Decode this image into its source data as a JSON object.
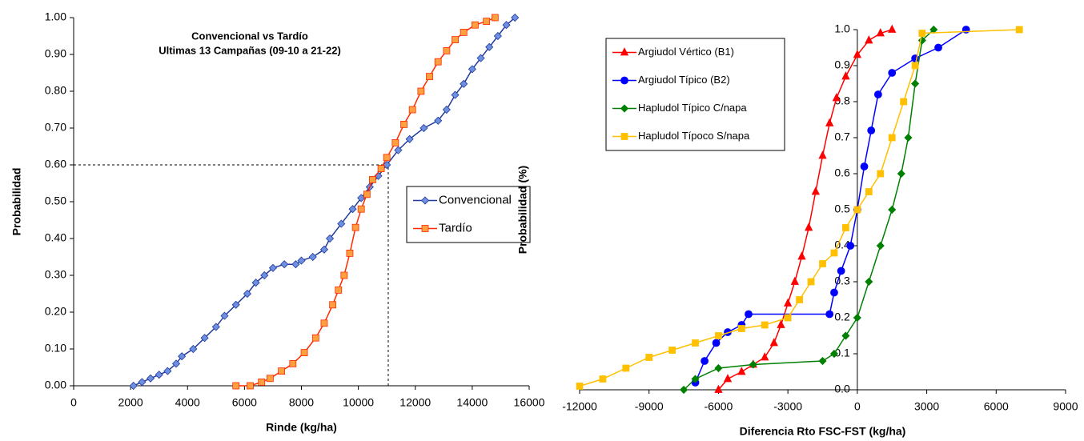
{
  "chart_data": [
    {
      "type": "line",
      "title": "Convencional vs Tardío",
      "subtitle": "Ultimas 13 Campañas (09-10 a 21-22)",
      "x_label": "Rinde (kg/ha)",
      "y_label": "Probabilidad",
      "xlim": [
        0,
        16000
      ],
      "xticks": [
        0,
        2000,
        4000,
        6000,
        8000,
        10000,
        12000,
        14000,
        16000
      ],
      "ylim": [
        0,
        1
      ],
      "yticks": [
        {
          "value": 0,
          "label": "0.00"
        },
        {
          "value": 0.1,
          "label": "0.10"
        },
        {
          "value": 0.2,
          "label": "0.20"
        },
        {
          "value": 0.3,
          "label": "0.30"
        },
        {
          "value": 0.4,
          "label": "0.40"
        },
        {
          "value": 0.5,
          "label": "0.50"
        },
        {
          "value": 0.6,
          "label": "0.60"
        },
        {
          "value": 0.7,
          "label": "0.70"
        },
        {
          "value": 0.8,
          "label": "0.80"
        },
        {
          "value": 0.9,
          "label": "0.90"
        },
        {
          "value": 1,
          "label": "1.00"
        }
      ],
      "legend": "center right",
      "grid": false,
      "guide": {
        "x": 11050,
        "y": 0.6
      },
      "series": [
        {
          "name": "Convencional",
          "color": "#1f3a9c",
          "marker_fill": "#6f8fe0",
          "marker": "diamond",
          "x": [
            2100,
            2400,
            2700,
            3000,
            3300,
            3600,
            3800,
            4200,
            4600,
            5000,
            5300,
            5700,
            6100,
            6400,
            6700,
            7000,
            7400,
            7800,
            8000,
            8400,
            8800,
            9000,
            9400,
            9800,
            10100,
            10400,
            10700,
            11000,
            11400,
            11800,
            12300,
            12800,
            13100,
            13400,
            13700,
            14000,
            14300,
            14600,
            14900,
            15200,
            15500
          ],
          "values": [
            0,
            0.01,
            0.02,
            0.03,
            0.04,
            0.06,
            0.08,
            0.1,
            0.13,
            0.16,
            0.19,
            0.22,
            0.25,
            0.28,
            0.3,
            0.32,
            0.33,
            0.33,
            0.34,
            0.35,
            0.37,
            0.4,
            0.44,
            0.48,
            0.51,
            0.54,
            0.57,
            0.6,
            0.64,
            0.67,
            0.7,
            0.72,
            0.75,
            0.79,
            0.82,
            0.86,
            0.89,
            0.92,
            0.95,
            0.98,
            1
          ]
        },
        {
          "name": "Tardío",
          "color": "#ff2a00",
          "marker_fill": "#ffa040",
          "marker": "square",
          "x": [
            5700,
            6200,
            6600,
            6900,
            7300,
            7700,
            8100,
            8500,
            8800,
            9100,
            9300,
            9500,
            9700,
            9900,
            10100,
            10300,
            10500,
            10800,
            11000,
            11300,
            11600,
            11900,
            12200,
            12500,
            12800,
            13100,
            13400,
            13700,
            14100,
            14500,
            14800
          ],
          "values": [
            0,
            0,
            0.01,
            0.02,
            0.04,
            0.06,
            0.09,
            0.13,
            0.17,
            0.22,
            0.26,
            0.3,
            0.36,
            0.43,
            0.48,
            0.52,
            0.56,
            0.59,
            0.62,
            0.66,
            0.71,
            0.75,
            0.8,
            0.84,
            0.88,
            0.91,
            0.94,
            0.96,
            0.98,
            0.99,
            1
          ]
        }
      ]
    },
    {
      "type": "line",
      "x_label": "Diferencia Rto FSC-FST (kg/ha)",
      "y_label": "Probabilidad (%)",
      "xlim": [
        -12000,
        9000
      ],
      "xticks": [
        -12000,
        -9000,
        -6000,
        -3000,
        0,
        3000,
        6000,
        9000
      ],
      "ylim": [
        0,
        1
      ],
      "yticks": [
        {
          "value": 0,
          "label": "0.0"
        },
        0.1,
        0.2,
        0.3,
        0.4,
        0.5,
        0.6,
        0.7,
        0.8,
        0.9,
        {
          "value": 1,
          "label": "1.0"
        }
      ],
      "y_axis_crosses_x": 0,
      "legend": "upper left",
      "grid": false,
      "series": [
        {
          "name": "Argiudol Vértico (B1)",
          "color": "#ff0000",
          "marker_fill": "#ff0000",
          "marker": "triangle",
          "x": [
            -6000,
            -5600,
            -5000,
            -4500,
            -4000,
            -3600,
            -3300,
            -3000,
            -2700,
            -2400,
            -2100,
            -1800,
            -1500,
            -1200,
            -900,
            -500,
            0,
            500,
            1000,
            1500
          ],
          "values": [
            0,
            0.03,
            0.05,
            0.07,
            0.09,
            0.13,
            0.18,
            0.24,
            0.3,
            0.37,
            0.45,
            0.55,
            0.65,
            0.74,
            0.81,
            0.87,
            0.93,
            0.97,
            0.99,
            1
          ]
        },
        {
          "name": "Argiudol Típico (B2)",
          "color": "#0000ff",
          "marker_fill": "#0000ff",
          "marker": "circle",
          "x": [
            -7000,
            -6600,
            -6100,
            -5600,
            -5000,
            -4700,
            -1200,
            -1000,
            -700,
            -300,
            0,
            300,
            600,
            900,
            1500,
            2500,
            3500,
            4700
          ],
          "values": [
            0.02,
            0.08,
            0.13,
            0.16,
            0.18,
            0.21,
            0.21,
            0.27,
            0.33,
            0.4,
            0.5,
            0.62,
            0.72,
            0.82,
            0.88,
            0.92,
            0.95,
            1
          ]
        },
        {
          "name": "Hapludol Típico C/napa",
          "color": "#008000",
          "marker_fill": "#008000",
          "marker": "diamond",
          "x": [
            -7500,
            -7000,
            -6000,
            -4500,
            -1500,
            -1000,
            -500,
            0,
            500,
            1000,
            1500,
            1900,
            2200,
            2500,
            2800,
            3300
          ],
          "values": [
            0,
            0.03,
            0.06,
            0.07,
            0.08,
            0.1,
            0.15,
            0.2,
            0.3,
            0.4,
            0.5,
            0.6,
            0.7,
            0.85,
            0.97,
            1
          ]
        },
        {
          "name": "Hapludol Típoco S/napa",
          "color": "#ffc000",
          "marker_fill": "#ffc000",
          "marker": "square",
          "x": [
            -12000,
            -11000,
            -10000,
            -9000,
            -8000,
            -7000,
            -6000,
            -5000,
            -4000,
            -3000,
            -2500,
            -2000,
            -1500,
            -1000,
            -500,
            0,
            500,
            1000,
            1500,
            2000,
            2500,
            2800,
            7000
          ],
          "values": [
            0.01,
            0.03,
            0.06,
            0.09,
            0.11,
            0.13,
            0.15,
            0.17,
            0.18,
            0.2,
            0.25,
            0.3,
            0.35,
            0.38,
            0.45,
            0.5,
            0.55,
            0.6,
            0.7,
            0.8,
            0.9,
            0.99,
            1
          ]
        }
      ]
    }
  ]
}
